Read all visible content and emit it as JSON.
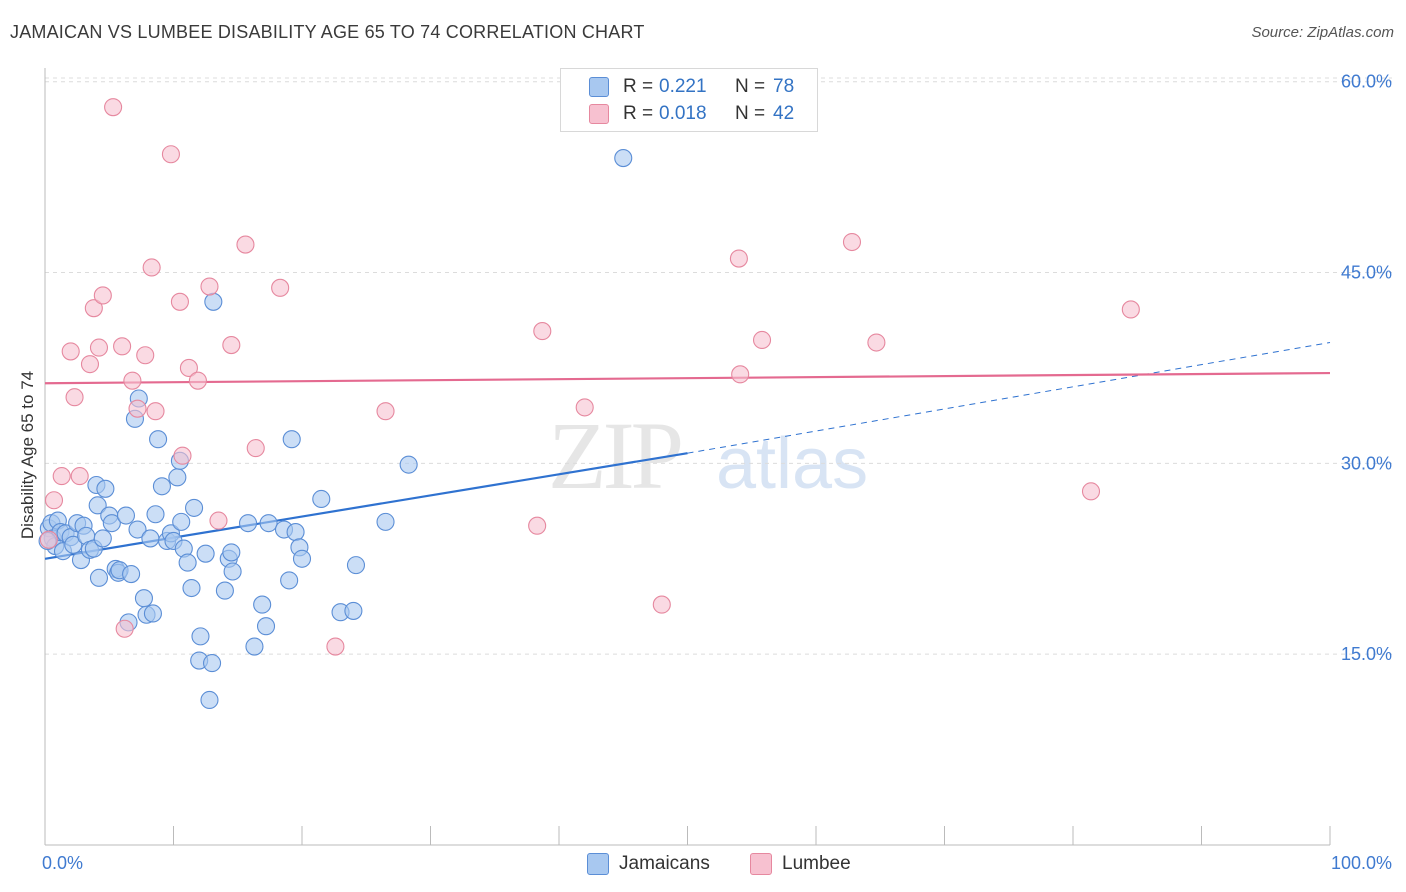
{
  "title": "JAMAICAN VS LUMBEE DISABILITY AGE 65 TO 74 CORRELATION CHART",
  "source": "Source: ZipAtlas.com",
  "watermark": {
    "zip": "ZIP",
    "atlas": "atlas"
  },
  "legend": {
    "r_label": "R =",
    "n_label": "N =",
    "rows": [
      {
        "r": "0.221",
        "n": "78",
        "color": "#a8c8f0",
        "stroke": "#5b8ed6"
      },
      {
        "r": "0.018",
        "n": "42",
        "color": "#f7c1d0",
        "stroke": "#e6889f"
      }
    ]
  },
  "bottom_legend": [
    {
      "label": "Jamaicans",
      "color": "#a8c8f0",
      "stroke": "#5b8ed6"
    },
    {
      "label": "Lumbee",
      "color": "#f7c1d0",
      "stroke": "#e6889f"
    }
  ],
  "chart_data": {
    "type": "scatter",
    "title": "JAMAICAN VS LUMBEE DISABILITY AGE 65 TO 74 CORRELATION CHART",
    "xlabel": "",
    "ylabel": "Disability Age 65 to 74",
    "xlim": [
      0,
      100
    ],
    "ylim": [
      0,
      63
    ],
    "x_tick_labels": [
      {
        "value": 0,
        "label": "0.0%"
      },
      {
        "value": 100,
        "label": "100.0%"
      }
    ],
    "y_ticks": [
      {
        "value": 15,
        "label": "15.0%"
      },
      {
        "value": 30,
        "label": "30.0%"
      },
      {
        "value": 45,
        "label": "45.0%"
      },
      {
        "value": 60,
        "label": "60.0%"
      }
    ],
    "grid": "horizontal dashed",
    "legend_position": "top-center",
    "series": [
      {
        "name": "Jamaicans",
        "color": "#5b8ed6",
        "fill": "#a8c8f0",
        "trend": {
          "x": [
            0,
            50
          ],
          "y": [
            22.5,
            30.8
          ],
          "dashed_to": [
            100,
            39.5
          ],
          "color": "#2f72d0"
        },
        "points": [
          [
            0.3,
            24.9
          ],
          [
            0.5,
            25.3
          ],
          [
            0.6,
            24.1
          ],
          [
            0.8,
            23.5
          ],
          [
            1.0,
            25.5
          ],
          [
            1.2,
            24.6
          ],
          [
            1.4,
            23.1
          ],
          [
            1.6,
            24.5
          ],
          [
            2.0,
            24.2
          ],
          [
            2.2,
            23.6
          ],
          [
            2.5,
            25.3
          ],
          [
            2.8,
            22.4
          ],
          [
            3.0,
            25.1
          ],
          [
            3.2,
            24.3
          ],
          [
            3.5,
            23.2
          ],
          [
            3.8,
            23.3
          ],
          [
            4.0,
            28.3
          ],
          [
            4.1,
            26.7
          ],
          [
            4.2,
            21.0
          ],
          [
            4.5,
            24.1
          ],
          [
            4.7,
            28.0
          ],
          [
            5.0,
            25.9
          ],
          [
            5.2,
            25.3
          ],
          [
            5.5,
            21.7
          ],
          [
            5.7,
            21.4
          ],
          [
            5.8,
            21.6
          ],
          [
            6.3,
            25.9
          ],
          [
            6.5,
            17.5
          ],
          [
            6.7,
            21.3
          ],
          [
            7.0,
            33.5
          ],
          [
            7.2,
            24.8
          ],
          [
            7.3,
            35.1
          ],
          [
            7.7,
            19.4
          ],
          [
            7.9,
            18.1
          ],
          [
            8.2,
            24.1
          ],
          [
            8.4,
            18.2
          ],
          [
            8.6,
            26.0
          ],
          [
            8.8,
            31.9
          ],
          [
            9.1,
            28.2
          ],
          [
            9.5,
            23.9
          ],
          [
            9.8,
            24.5
          ],
          [
            10.0,
            23.9
          ],
          [
            10.3,
            28.9
          ],
          [
            10.5,
            30.2
          ],
          [
            10.6,
            25.4
          ],
          [
            10.8,
            23.3
          ],
          [
            11.1,
            22.2
          ],
          [
            11.4,
            20.2
          ],
          [
            11.6,
            26.5
          ],
          [
            12.0,
            14.5
          ],
          [
            12.1,
            16.4
          ],
          [
            12.5,
            22.9
          ],
          [
            12.8,
            11.4
          ],
          [
            13.0,
            14.3
          ],
          [
            13.1,
            42.7
          ],
          [
            14.0,
            20.0
          ],
          [
            14.3,
            22.5
          ],
          [
            14.5,
            23.0
          ],
          [
            14.6,
            21.5
          ],
          [
            15.8,
            25.3
          ],
          [
            16.3,
            15.6
          ],
          [
            16.9,
            18.9
          ],
          [
            17.2,
            17.2
          ],
          [
            17.4,
            25.3
          ],
          [
            18.6,
            24.8
          ],
          [
            19.0,
            20.8
          ],
          [
            19.2,
            31.9
          ],
          [
            19.5,
            24.6
          ],
          [
            19.8,
            23.4
          ],
          [
            20.0,
            22.5
          ],
          [
            21.5,
            27.2
          ],
          [
            23.0,
            18.3
          ],
          [
            24.0,
            18.4
          ],
          [
            24.2,
            22.0
          ],
          [
            26.5,
            25.4
          ],
          [
            28.3,
            29.9
          ],
          [
            45.0,
            54.0
          ],
          [
            0.2,
            23.9
          ]
        ]
      },
      {
        "name": "Lumbee",
        "color": "#e6889f",
        "fill": "#f7c1d0",
        "trend": {
          "x": [
            0,
            100
          ],
          "y": [
            36.3,
            37.1
          ],
          "color": "#e46a90"
        },
        "points": [
          [
            0.3,
            24.0
          ],
          [
            0.7,
            27.1
          ],
          [
            1.3,
            29.0
          ],
          [
            2.0,
            38.8
          ],
          [
            2.3,
            35.2
          ],
          [
            2.7,
            29.0
          ],
          [
            3.5,
            37.8
          ],
          [
            3.8,
            42.2
          ],
          [
            4.2,
            39.1
          ],
          [
            4.5,
            43.2
          ],
          [
            5.3,
            58.0
          ],
          [
            6.0,
            39.2
          ],
          [
            6.2,
            17.0
          ],
          [
            6.8,
            36.5
          ],
          [
            7.2,
            34.3
          ],
          [
            7.8,
            38.5
          ],
          [
            8.3,
            45.4
          ],
          [
            8.6,
            34.1
          ],
          [
            9.8,
            54.3
          ],
          [
            10.5,
            42.7
          ],
          [
            10.7,
            30.6
          ],
          [
            11.2,
            37.5
          ],
          [
            11.9,
            36.5
          ],
          [
            12.8,
            43.9
          ],
          [
            13.5,
            25.5
          ],
          [
            14.5,
            39.3
          ],
          [
            15.6,
            47.2
          ],
          [
            16.4,
            31.2
          ],
          [
            18.3,
            43.8
          ],
          [
            22.6,
            15.6
          ],
          [
            26.5,
            34.1
          ],
          [
            38.3,
            25.1
          ],
          [
            38.7,
            40.4
          ],
          [
            42.0,
            34.4
          ],
          [
            48.0,
            18.9
          ],
          [
            54.0,
            46.1
          ],
          [
            54.1,
            37.0
          ],
          [
            55.8,
            39.7
          ],
          [
            62.8,
            47.4
          ],
          [
            64.7,
            39.5
          ],
          [
            81.4,
            27.8
          ],
          [
            84.5,
            42.1
          ]
        ]
      }
    ]
  }
}
